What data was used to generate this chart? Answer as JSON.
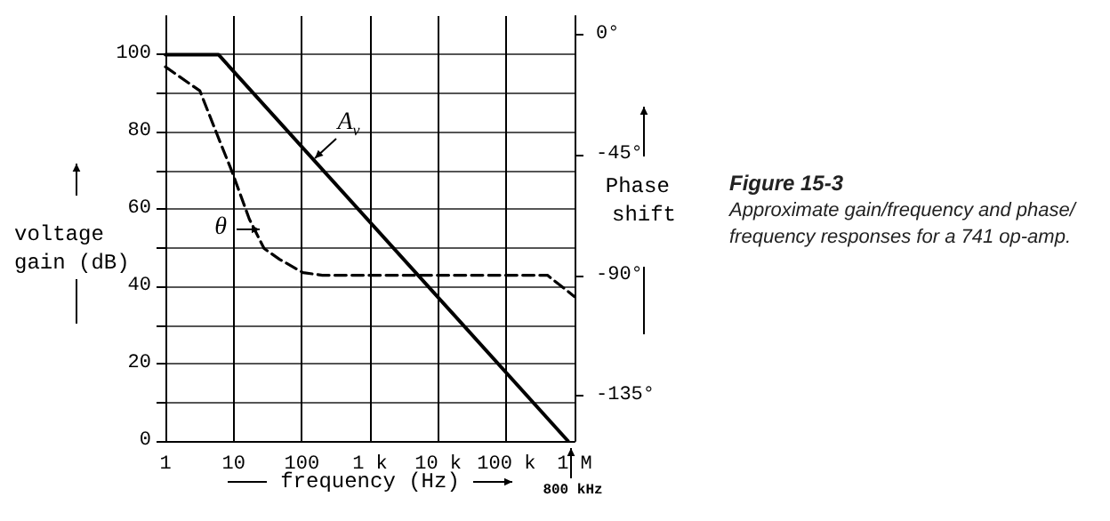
{
  "chart_data": {
    "type": "line",
    "title": "Figure 15-3",
    "subtitle": "Approximate gain/frequency and phase/frequency responses for a 741 op-amp.",
    "xlabel": "frequency (Hz)",
    "ylabel": "voltage gain (dB)",
    "y2label": "Phase shift",
    "log": "x",
    "xlim": [
      1,
      1000000
    ],
    "xticks": [
      1,
      10,
      100,
      {
        "value": 1000,
        "label": "1 k"
      },
      {
        "value": 10000,
        "label": "10 k"
      },
      {
        "value": 100000,
        "label": "100 k"
      },
      {
        "value": 1000000,
        "label": "1 M"
      }
    ],
    "ylim": [
      0,
      110
    ],
    "yticks": [
      0,
      {
        "value": 10,
        "label": null
      },
      20,
      {
        "value": 30,
        "label": null
      },
      40,
      {
        "value": 50,
        "label": null
      },
      60,
      {
        "value": 70,
        "label": null
      },
      80,
      {
        "value": 90,
        "label": null
      },
      100
    ],
    "y2lim": [
      -152,
      7
    ],
    "y2ticks": [
      {
        "value": 0,
        "label": "0°"
      },
      {
        "value": -45,
        "label": "-45°"
      },
      {
        "value": -90,
        "label": "-90°"
      },
      {
        "value": -135,
        "label": "-135°"
      }
    ],
    "series": [
      {
        "color": "#000000",
        "line_style": "solid",
        "x": [
          1,
          6,
          800000
        ],
        "values": [
          100,
          100,
          0
        ]
      },
      {
        "color": "#000000",
        "line_style": "dashed",
        "axis": "y2",
        "x": [
          1,
          3.2,
          6.3,
          9.4,
          17,
          28,
          47,
          104,
          200,
          400000,
          1000000
        ],
        "values": [
          -12,
          -21,
          -40,
          -51,
          -69,
          -80,
          -84,
          -89,
          -90,
          -90,
          -98
        ]
      }
    ],
    "annotations": [
      "A$_{v}$",
      "θ",
      "800 kHz"
    ],
    "grid": true,
    "marker": "none"
  }
}
